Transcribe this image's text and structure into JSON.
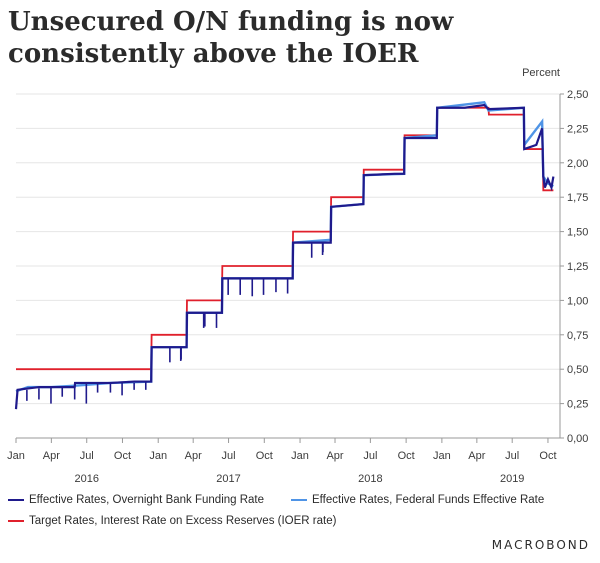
{
  "title": "Unsecured O/N funding is now consistently above the IOER",
  "unit_label": "Percent",
  "brand": "MACROBOND",
  "colors": {
    "obfr": "#1f1a8c",
    "effr": "#4f94e6",
    "ioer": "#e0202c",
    "axis": "#9a9a9a"
  },
  "chart_data": {
    "type": "line",
    "x_axis": {
      "range": [
        "2016-01",
        "2019-10"
      ],
      "month_ticks": [
        "Jan",
        "Apr",
        "Jul",
        "Oct",
        "Jan",
        "Apr",
        "Jul",
        "Oct",
        "Jan",
        "Apr",
        "Jul",
        "Oct",
        "Jan",
        "Apr",
        "Jul",
        "Oct"
      ],
      "years": [
        "2016",
        "2017",
        "2018",
        "2019"
      ]
    },
    "y_axis": {
      "ylim": [
        0,
        2.5
      ],
      "ticks": [
        "0,00",
        "0,25",
        "0,50",
        "0,75",
        "1,00",
        "1,25",
        "1,50",
        "1,75",
        "2,00",
        "2,25",
        "2,50"
      ],
      "position": "right"
    },
    "grid": true,
    "legend_position": "bottom",
    "series": [
      {
        "name": "Effective Rates, Overnight Bank Funding Rate",
        "key": "obfr",
        "points": [
          [
            "2016-01-01",
            0.21
          ],
          [
            "2016-01-05",
            0.35
          ],
          [
            "2016-02-01",
            0.36
          ],
          [
            "2016-03-01",
            0.37
          ],
          [
            "2016-04-15",
            0.37
          ],
          [
            "2016-05-31",
            0.37
          ],
          [
            "2016-06-01",
            0.4
          ],
          [
            "2016-09-01",
            0.4
          ],
          [
            "2016-11-01",
            0.41
          ],
          [
            "2016-12-14",
            0.41
          ],
          [
            "2016-12-15",
            0.66
          ],
          [
            "2017-01-01",
            0.66
          ],
          [
            "2017-03-15",
            0.66
          ],
          [
            "2017-03-16",
            0.91
          ],
          [
            "2017-06-14",
            0.91
          ],
          [
            "2017-06-15",
            1.16
          ],
          [
            "2017-09-01",
            1.16
          ],
          [
            "2017-12-13",
            1.16
          ],
          [
            "2017-12-14",
            1.42
          ],
          [
            "2018-03-01",
            1.42
          ],
          [
            "2018-03-21",
            1.42
          ],
          [
            "2018-03-22",
            1.68
          ],
          [
            "2018-06-13",
            1.7
          ],
          [
            "2018-06-14",
            1.91
          ],
          [
            "2018-09-01",
            1.92
          ],
          [
            "2018-09-26",
            1.92
          ],
          [
            "2018-09-27",
            2.18
          ],
          [
            "2018-12-19",
            2.18
          ],
          [
            "2018-12-20",
            2.4
          ],
          [
            "2019-03-01",
            2.4
          ],
          [
            "2019-04-20",
            2.42
          ],
          [
            "2019-05-01",
            2.39
          ],
          [
            "2019-07-31",
            2.4
          ],
          [
            "2019-08-01",
            2.1
          ],
          [
            "2019-09-01",
            2.13
          ],
          [
            "2019-09-16",
            2.25
          ],
          [
            "2019-09-19",
            1.9
          ],
          [
            "2019-09-23",
            1.82
          ],
          [
            "2019-10-01",
            1.88
          ],
          [
            "2019-10-10",
            1.82
          ],
          [
            "2019-10-15",
            1.9
          ]
        ]
      },
      {
        "name": "Effective Rates, Federal Funds Effective Rate",
        "key": "effr",
        "points": [
          [
            "2016-01-01",
            0.34
          ],
          [
            "2016-02-01",
            0.37
          ],
          [
            "2016-04-01",
            0.37
          ],
          [
            "2016-06-01",
            0.38
          ],
          [
            "2016-09-01",
            0.4
          ],
          [
            "2016-12-14",
            0.41
          ],
          [
            "2016-12-15",
            0.66
          ],
          [
            "2017-03-15",
            0.66
          ],
          [
            "2017-03-16",
            0.91
          ],
          [
            "2017-06-14",
            0.91
          ],
          [
            "2017-06-15",
            1.16
          ],
          [
            "2017-12-13",
            1.16
          ],
          [
            "2017-12-14",
            1.42
          ],
          [
            "2018-03-21",
            1.44
          ],
          [
            "2018-03-22",
            1.68
          ],
          [
            "2018-06-13",
            1.7
          ],
          [
            "2018-06-14",
            1.91
          ],
          [
            "2018-09-26",
            1.92
          ],
          [
            "2018-09-27",
            2.18
          ],
          [
            "2018-12-19",
            2.2
          ],
          [
            "2018-12-20",
            2.4
          ],
          [
            "2019-04-20",
            2.44
          ],
          [
            "2019-05-01",
            2.38
          ],
          [
            "2019-07-31",
            2.4
          ],
          [
            "2019-08-01",
            2.13
          ],
          [
            "2019-09-16",
            2.3
          ],
          [
            "2019-09-19",
            1.9
          ],
          [
            "2019-10-01",
            1.85
          ],
          [
            "2019-10-15",
            1.83
          ]
        ]
      },
      {
        "name": "Target Rates, Interest Rate on Excess Reserves (IOER rate)",
        "key": "ioer",
        "points": [
          [
            "2016-01-01",
            0.5
          ],
          [
            "2016-12-14",
            0.5
          ],
          [
            "2016-12-15",
            0.75
          ],
          [
            "2017-03-15",
            0.75
          ],
          [
            "2017-03-16",
            1.0
          ],
          [
            "2017-06-14",
            1.0
          ],
          [
            "2017-06-15",
            1.25
          ],
          [
            "2017-12-13",
            1.25
          ],
          [
            "2017-12-14",
            1.5
          ],
          [
            "2018-03-21",
            1.5
          ],
          [
            "2018-03-22",
            1.75
          ],
          [
            "2018-06-13",
            1.75
          ],
          [
            "2018-06-14",
            1.95
          ],
          [
            "2018-09-26",
            1.95
          ],
          [
            "2018-09-27",
            2.2
          ],
          [
            "2018-12-19",
            2.2
          ],
          [
            "2018-12-20",
            2.4
          ],
          [
            "2019-05-01",
            2.4
          ],
          [
            "2019-05-02",
            2.35
          ],
          [
            "2019-07-31",
            2.35
          ],
          [
            "2019-08-01",
            2.1
          ],
          [
            "2019-09-18",
            2.1
          ],
          [
            "2019-09-19",
            1.8
          ],
          [
            "2019-10-15",
            1.8
          ]
        ]
      }
    ],
    "month_end_dips": {
      "series": "obfr",
      "points": [
        [
          "2016-01-29",
          0.27
        ],
        [
          "2016-02-29",
          0.28
        ],
        [
          "2016-03-31",
          0.25
        ],
        [
          "2016-04-29",
          0.3
        ],
        [
          "2016-05-31",
          0.28
        ],
        [
          "2016-06-30",
          0.25
        ],
        [
          "2016-07-29",
          0.33
        ],
        [
          "2016-08-31",
          0.33
        ],
        [
          "2016-09-30",
          0.31
        ],
        [
          "2016-10-31",
          0.35
        ],
        [
          "2016-11-30",
          0.35
        ],
        [
          "2017-01-31",
          0.55
        ],
        [
          "2017-02-28",
          0.56
        ],
        [
          "2017-03-01",
          0.57
        ],
        [
          "2017-04-28",
          0.8
        ],
        [
          "2017-05-31",
          0.8
        ],
        [
          "2017-05-01",
          0.81
        ],
        [
          "2017-06-30",
          1.04
        ],
        [
          "2017-07-31",
          1.04
        ],
        [
          "2017-08-31",
          1.03
        ],
        [
          "2017-09-29",
          1.04
        ],
        [
          "2017-10-31",
          1.06
        ],
        [
          "2017-11-30",
          1.05
        ],
        [
          "2018-01-31",
          1.31
        ],
        [
          "2018-02-28",
          1.33
        ],
        [
          "2018-03-01",
          1.35
        ]
      ]
    }
  },
  "legend": [
    {
      "label": "Effective Rates, Overnight Bank Funding Rate",
      "key": "obfr"
    },
    {
      "label": "Effective Rates, Federal Funds Effective Rate",
      "key": "effr"
    },
    {
      "label": "Target Rates, Interest Rate on Excess Reserves (IOER rate)",
      "key": "ioer"
    }
  ]
}
